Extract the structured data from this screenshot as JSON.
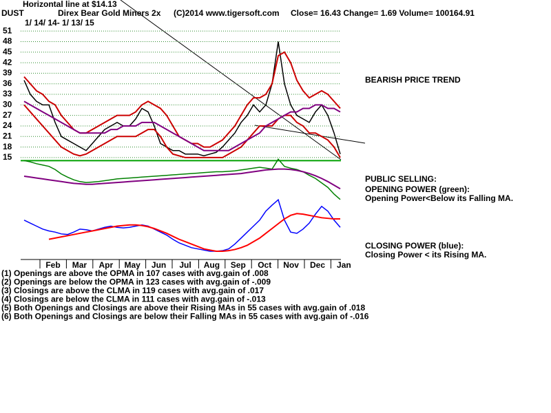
{
  "header": {
    "symbol": "DUST",
    "name": "Direx Bear Gold Miners 2x",
    "copyright": "(C)2014 www.tigersoft.com",
    "quote": "Close=  16.43  Change= 1.69 Volume= 100164.91",
    "note": "Horizontal line at $14.13",
    "dates": "1/ 14/ 14- 1/ 13/ 15"
  },
  "side": {
    "trend": "BEARISH PRICE TREND",
    "selling": "PUBLIC SELLING:",
    "op_title": "OPENING POWER (green):",
    "op_text": "Opening Power<Below its Falling MA.",
    "cp_title": "CLOSING POWER (blue):",
    "cp_text": "Closing Power < its Rising MA."
  },
  "notes": [
    "(1) Openings are above the OPMA in  107 cases with avg.gain of  .008",
    "(2) Openings are below the OPMA in  123 cases with avg.gain of -.009",
    "(3) Closings are above the CLMA in  119 cases with avg.gain of  .017",
    "(4) Closings are below the CLMA in  111 cases with avg.gain of -.013",
    "(5) Both Openings and Closings are above their Rising MAs in  55 cases with avg.gain of  .018",
    "(6) Both Openings and Closings are below their Falling MAs in  55 cases with avg.gain of -.016"
  ],
  "chart_data": [
    {
      "type": "line",
      "months": [
        "Feb",
        "Mar",
        "Apr",
        "May",
        "Jun",
        "Jul",
        "Aug",
        "Sep",
        "Oct",
        "Nov",
        "Dec",
        "Jan"
      ],
      "ylim": [
        14.4,
        52.4
      ],
      "yticks": [
        15,
        18,
        21,
        24,
        27,
        30,
        33,
        36,
        39,
        42,
        45,
        48,
        51
      ],
      "grid": true,
      "hline": 14.13,
      "hline_color": "#00a000",
      "series": [
        {
          "color": "#000000",
          "values": [
            37,
            33,
            31,
            30,
            30,
            25,
            21,
            20,
            19,
            18,
            17,
            19,
            21,
            23,
            24,
            25,
            24,
            24,
            26,
            29,
            28,
            24,
            19,
            18,
            17,
            17,
            16,
            16,
            16,
            15.5,
            16,
            16.5,
            18,
            20,
            22,
            25,
            27,
            30,
            28,
            30,
            36,
            48,
            36,
            30,
            27,
            26,
            25,
            28,
            30,
            27,
            22,
            16
          ]
        },
        {
          "color": "#cc0000",
          "values": [
            38,
            36,
            34,
            33,
            31,
            30,
            27,
            25,
            23,
            22,
            22,
            23,
            24,
            25,
            26,
            27,
            27,
            27,
            28,
            30,
            31,
            30,
            29,
            27,
            24,
            21,
            20,
            19,
            19,
            18,
            18,
            19,
            20,
            22,
            24,
            27,
            30,
            32,
            32,
            33,
            36,
            44,
            45,
            42,
            37,
            34,
            32,
            33,
            34,
            33,
            31,
            29
          ]
        },
        {
          "color": "#cc0000",
          "values": [
            30,
            28,
            26,
            24,
            22,
            20,
            18,
            17,
            16,
            15.5,
            16,
            17,
            18,
            19,
            20,
            21,
            21,
            21,
            21,
            22,
            23,
            23,
            21,
            18,
            16,
            15.5,
            15,
            15,
            15,
            15,
            15,
            15,
            15,
            16,
            17,
            18,
            20,
            22,
            24,
            24,
            24,
            26,
            27,
            27,
            25,
            24,
            22,
            22,
            21,
            20,
            18,
            15
          ]
        },
        {
          "color": "#800080",
          "values": [
            31,
            30,
            29,
            28,
            27,
            26,
            25,
            24,
            23,
            22,
            22,
            22,
            22,
            22,
            23,
            23,
            24,
            24,
            24,
            25,
            25,
            25,
            24,
            23,
            22,
            21,
            20,
            19,
            18,
            17,
            17,
            17,
            17,
            17,
            18,
            19,
            20,
            21,
            22,
            24,
            25,
            26,
            27,
            28,
            28,
            29,
            29,
            30,
            30,
            29,
            29,
            28
          ]
        }
      ]
    },
    {
      "type": "line",
      "ylim": [
        0,
        100
      ],
      "series": [
        {
          "color": "#008000",
          "values": [
            95,
            92,
            88,
            85,
            82,
            75,
            65,
            58,
            52,
            48,
            46,
            47,
            48,
            50,
            52,
            54,
            55,
            56,
            57,
            58,
            59,
            60,
            61,
            62,
            63,
            64,
            65,
            66,
            67,
            68,
            69,
            70,
            70,
            71,
            72,
            74,
            76,
            78,
            80,
            78,
            76,
            98,
            82,
            78,
            75,
            70,
            62,
            55,
            45,
            35,
            20,
            8
          ]
        },
        {
          "color": "#800080",
          "values": [
            60,
            58,
            56,
            54,
            52,
            50,
            48,
            46,
            44,
            43,
            42,
            42,
            43,
            44,
            45,
            46,
            47,
            48,
            49,
            50,
            51,
            52,
            53,
            54,
            55,
            56,
            57,
            58,
            59,
            60,
            61,
            62,
            63,
            64,
            65,
            66,
            68,
            70,
            72,
            74,
            75,
            76,
            76,
            75,
            73,
            70,
            66,
            61,
            55,
            48,
            40,
            32
          ]
        }
      ]
    },
    {
      "type": "line",
      "ylim": [
        0,
        100
      ],
      "series": [
        {
          "color": "#0000ff",
          "values": [
            60,
            55,
            50,
            45,
            42,
            40,
            37,
            36,
            40,
            45,
            44,
            42,
            45,
            48,
            50,
            48,
            47,
            48,
            50,
            52,
            50,
            45,
            40,
            35,
            28,
            22,
            18,
            14,
            12,
            10,
            8,
            8,
            9,
            12,
            20,
            30,
            40,
            50,
            60,
            75,
            85,
            94,
            60,
            40,
            38,
            45,
            55,
            70,
            83,
            75,
            60,
            48
          ]
        },
        {
          "color": "#ff0000",
          "values": [
            null,
            null,
            null,
            null,
            28,
            30,
            32,
            34,
            36,
            38,
            40,
            42,
            44,
            46,
            48,
            50,
            51,
            52,
            52,
            51,
            49,
            46,
            42,
            38,
            33,
            28,
            24,
            20,
            16,
            12,
            10,
            8,
            8,
            9,
            11,
            14,
            18,
            24,
            30,
            38,
            46,
            54,
            62,
            68,
            71,
            70,
            68,
            66,
            64,
            63,
            62,
            62
          ]
        }
      ]
    }
  ]
}
